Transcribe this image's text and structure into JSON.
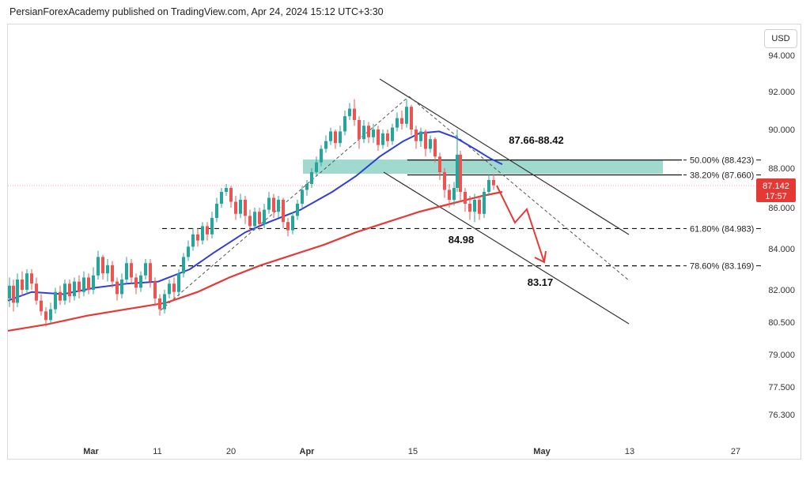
{
  "header": {
    "attribution": "PersianForexAcademy published on TradingView.com, Apr 24, 2024 15:12 UTC+3:30"
  },
  "currency_label": "USD",
  "price_marker": {
    "value": "87.142",
    "countdown": "17:57",
    "color": "#e53935"
  },
  "colors": {
    "candle_up": "#26a69a",
    "candle_down": "#ef5350",
    "ma_fast": "#2f3fd6",
    "ma_slow": "#e53935",
    "zone": "#8fd3c6",
    "projection": "#e53935"
  },
  "chart_data": {
    "type": "candlestick",
    "title": "",
    "y_ticks": [
      "94.000",
      "92.000",
      "90.000",
      "88.000",
      "86.000",
      "84.000",
      "82.000",
      "80.500",
      "79.000",
      "77.500",
      "76.300"
    ],
    "x_ticks": [
      {
        "label": "Mar",
        "bold": true
      },
      {
        "label": "11",
        "bold": false
      },
      {
        "label": "20",
        "bold": false
      },
      {
        "label": "Apr",
        "bold": true
      },
      {
        "label": "15",
        "bold": false
      },
      {
        "label": "May",
        "bold": true
      },
      {
        "label": "13",
        "bold": false
      },
      {
        "label": "27",
        "bold": false
      }
    ],
    "fib_levels": [
      {
        "label": "50.00% (88.423)",
        "value": 88.423
      },
      {
        "label": "38.20% (87.660)",
        "value": 87.66
      },
      {
        "label": "61.80% (84.983)",
        "value": 84.983
      },
      {
        "label": "78.60% (83.169)",
        "value": 83.169
      }
    ],
    "annotations": [
      {
        "text": "87.66-88.42"
      },
      {
        "text": "84.98"
      },
      {
        "text": "83.17"
      }
    ],
    "ma_fast_points": [
      [
        0,
        81.5
      ],
      [
        30,
        81.9
      ],
      [
        70,
        81.8
      ],
      [
        110,
        82.1
      ],
      [
        150,
        82.3
      ],
      [
        190,
        82.4
      ],
      [
        230,
        83.0
      ],
      [
        260,
        83.8
      ],
      [
        300,
        84.8
      ],
      [
        330,
        85.3
      ],
      [
        370,
        85.9
      ],
      [
        410,
        86.8
      ],
      [
        440,
        87.6
      ],
      [
        470,
        88.6
      ],
      [
        500,
        89.4
      ],
      [
        520,
        89.8
      ],
      [
        545,
        89.9
      ],
      [
        565,
        89.6
      ],
      [
        590,
        89.0
      ],
      [
        610,
        88.5
      ],
      [
        625,
        88.2
      ]
    ],
    "ma_slow_points": [
      [
        0,
        80.1
      ],
      [
        50,
        80.4
      ],
      [
        100,
        80.8
      ],
      [
        150,
        81.1
      ],
      [
        200,
        81.4
      ],
      [
        240,
        81.9
      ],
      [
        280,
        82.6
      ],
      [
        320,
        83.2
      ],
      [
        360,
        83.7
      ],
      [
        400,
        84.2
      ],
      [
        440,
        84.8
      ],
      [
        480,
        85.3
      ],
      [
        520,
        85.8
      ],
      [
        560,
        86.2
      ],
      [
        600,
        86.6
      ],
      [
        625,
        86.8
      ]
    ],
    "candles": [
      {
        "x": 12,
        "o": 81.6,
        "c": 82.2,
        "h": 82.6,
        "l": 81.2
      },
      {
        "x": 17,
        "o": 82.2,
        "c": 81.4,
        "h": 82.5,
        "l": 81.0
      },
      {
        "x": 22,
        "o": 81.4,
        "c": 82.5,
        "h": 82.8,
        "l": 81.2
      },
      {
        "x": 28,
        "o": 82.5,
        "c": 82.0,
        "h": 82.9,
        "l": 81.7
      },
      {
        "x": 34,
        "o": 82.0,
        "c": 82.8,
        "h": 83.0,
        "l": 81.8
      },
      {
        "x": 40,
        "o": 82.8,
        "c": 82.3,
        "h": 83.0,
        "l": 82.0
      },
      {
        "x": 46,
        "o": 82.3,
        "c": 81.5,
        "h": 82.6,
        "l": 81.3
      },
      {
        "x": 52,
        "o": 81.5,
        "c": 81.0,
        "h": 81.8,
        "l": 80.8
      },
      {
        "x": 58,
        "o": 81.0,
        "c": 80.6,
        "h": 81.2,
        "l": 80.3
      },
      {
        "x": 64,
        "o": 80.6,
        "c": 81.1,
        "h": 81.4,
        "l": 80.4
      },
      {
        "x": 70,
        "o": 81.1,
        "c": 81.9,
        "h": 82.1,
        "l": 80.9
      },
      {
        "x": 76,
        "o": 81.9,
        "c": 81.5,
        "h": 82.2,
        "l": 81.3
      },
      {
        "x": 82,
        "o": 81.5,
        "c": 82.3,
        "h": 82.5,
        "l": 81.3
      },
      {
        "x": 88,
        "o": 82.3,
        "c": 81.7,
        "h": 82.5,
        "l": 81.4
      },
      {
        "x": 94,
        "o": 81.7,
        "c": 82.4,
        "h": 82.6,
        "l": 81.5
      },
      {
        "x": 100,
        "o": 82.4,
        "c": 81.9,
        "h": 82.7,
        "l": 81.6
      },
      {
        "x": 106,
        "o": 81.9,
        "c": 82.6,
        "h": 82.9,
        "l": 81.7
      },
      {
        "x": 112,
        "o": 82.6,
        "c": 82.0,
        "h": 82.8,
        "l": 81.8
      },
      {
        "x": 118,
        "o": 82.0,
        "c": 82.7,
        "h": 83.1,
        "l": 81.8
      },
      {
        "x": 124,
        "o": 82.7,
        "c": 83.6,
        "h": 83.9,
        "l": 82.5
      },
      {
        "x": 130,
        "o": 83.6,
        "c": 82.8,
        "h": 83.7,
        "l": 82.5
      },
      {
        "x": 136,
        "o": 82.8,
        "c": 83.2,
        "h": 83.5,
        "l": 82.4
      },
      {
        "x": 142,
        "o": 83.2,
        "c": 82.4,
        "h": 83.4,
        "l": 82.1
      },
      {
        "x": 148,
        "o": 82.4,
        "c": 81.8,
        "h": 82.6,
        "l": 81.5
      },
      {
        "x": 154,
        "o": 81.8,
        "c": 82.5,
        "h": 82.8,
        "l": 81.6
      },
      {
        "x": 160,
        "o": 82.5,
        "c": 83.3,
        "h": 83.6,
        "l": 82.3
      },
      {
        "x": 166,
        "o": 83.3,
        "c": 82.6,
        "h": 83.5,
        "l": 82.3
      },
      {
        "x": 172,
        "o": 82.6,
        "c": 82.1,
        "h": 82.8,
        "l": 81.8
      },
      {
        "x": 178,
        "o": 82.1,
        "c": 82.7,
        "h": 82.9,
        "l": 81.9
      },
      {
        "x": 184,
        "o": 82.7,
        "c": 83.3,
        "h": 83.5,
        "l": 82.5
      },
      {
        "x": 190,
        "o": 83.3,
        "c": 82.4,
        "h": 83.5,
        "l": 82.1
      },
      {
        "x": 196,
        "o": 82.4,
        "c": 81.6,
        "h": 82.6,
        "l": 81.3
      },
      {
        "x": 202,
        "o": 81.6,
        "c": 81.1,
        "h": 81.8,
        "l": 80.8
      },
      {
        "x": 208,
        "o": 81.1,
        "c": 81.8,
        "h": 82.0,
        "l": 80.9
      },
      {
        "x": 214,
        "o": 81.8,
        "c": 82.3,
        "h": 82.5,
        "l": 81.6
      },
      {
        "x": 220,
        "o": 82.3,
        "c": 81.9,
        "h": 82.6,
        "l": 81.6
      },
      {
        "x": 226,
        "o": 81.9,
        "c": 82.8,
        "h": 83.0,
        "l": 81.7
      },
      {
        "x": 232,
        "o": 82.8,
        "c": 83.6,
        "h": 83.8,
        "l": 82.6
      },
      {
        "x": 238,
        "o": 83.6,
        "c": 84.1,
        "h": 84.4,
        "l": 83.4
      },
      {
        "x": 244,
        "o": 84.1,
        "c": 84.7,
        "h": 85.0,
        "l": 83.9
      },
      {
        "x": 250,
        "o": 84.7,
        "c": 84.4,
        "h": 85.0,
        "l": 84.1
      },
      {
        "x": 256,
        "o": 84.4,
        "c": 85.1,
        "h": 85.3,
        "l": 84.2
      },
      {
        "x": 262,
        "o": 85.1,
        "c": 84.7,
        "h": 85.3,
        "l": 84.4
      },
      {
        "x": 268,
        "o": 84.7,
        "c": 85.5,
        "h": 85.8,
        "l": 84.5
      },
      {
        "x": 274,
        "o": 85.5,
        "c": 86.2,
        "h": 86.5,
        "l": 85.3
      },
      {
        "x": 280,
        "o": 86.2,
        "c": 86.8,
        "h": 87.0,
        "l": 86.0
      },
      {
        "x": 286,
        "o": 86.8,
        "c": 87.0,
        "h": 87.2,
        "l": 86.6
      },
      {
        "x": 292,
        "o": 87.0,
        "c": 86.3,
        "h": 87.1,
        "l": 86.0
      },
      {
        "x": 298,
        "o": 86.3,
        "c": 85.7,
        "h": 86.6,
        "l": 85.4
      },
      {
        "x": 304,
        "o": 85.7,
        "c": 86.4,
        "h": 86.7,
        "l": 85.5
      },
      {
        "x": 310,
        "o": 86.4,
        "c": 85.6,
        "h": 86.6,
        "l": 85.2
      },
      {
        "x": 316,
        "o": 85.6,
        "c": 85.1,
        "h": 85.9,
        "l": 84.8
      },
      {
        "x": 322,
        "o": 85.1,
        "c": 85.8,
        "h": 86.0,
        "l": 84.9
      },
      {
        "x": 328,
        "o": 85.8,
        "c": 85.2,
        "h": 86.0,
        "l": 84.9
      },
      {
        "x": 334,
        "o": 85.2,
        "c": 85.9,
        "h": 86.2,
        "l": 85.0
      },
      {
        "x": 340,
        "o": 85.9,
        "c": 86.5,
        "h": 86.8,
        "l": 85.7
      },
      {
        "x": 346,
        "o": 86.5,
        "c": 85.8,
        "h": 86.7,
        "l": 85.5
      },
      {
        "x": 352,
        "o": 85.8,
        "c": 86.4,
        "h": 86.6,
        "l": 85.5
      },
      {
        "x": 358,
        "o": 86.4,
        "c": 85.3,
        "h": 86.5,
        "l": 85.0
      },
      {
        "x": 364,
        "o": 85.3,
        "c": 84.9,
        "h": 85.5,
        "l": 84.6
      },
      {
        "x": 370,
        "o": 84.9,
        "c": 85.6,
        "h": 85.8,
        "l": 84.7
      },
      {
        "x": 376,
        "o": 85.6,
        "c": 86.2,
        "h": 86.4,
        "l": 85.4
      },
      {
        "x": 382,
        "o": 86.2,
        "c": 86.9,
        "h": 87.1,
        "l": 86.0
      },
      {
        "x": 388,
        "o": 86.9,
        "c": 87.2,
        "h": 87.4,
        "l": 86.6
      },
      {
        "x": 394,
        "o": 87.2,
        "c": 87.8,
        "h": 88.0,
        "l": 87.0
      },
      {
        "x": 400,
        "o": 87.8,
        "c": 88.3,
        "h": 88.6,
        "l": 87.6
      },
      {
        "x": 406,
        "o": 88.3,
        "c": 89.0,
        "h": 89.2,
        "l": 88.1
      },
      {
        "x": 412,
        "o": 89.0,
        "c": 89.4,
        "h": 89.7,
        "l": 88.8
      },
      {
        "x": 418,
        "o": 89.4,
        "c": 89.9,
        "h": 90.1,
        "l": 89.2
      },
      {
        "x": 424,
        "o": 89.9,
        "c": 89.3,
        "h": 90.0,
        "l": 89.0
      },
      {
        "x": 430,
        "o": 89.3,
        "c": 89.9,
        "h": 90.2,
        "l": 89.1
      },
      {
        "x": 436,
        "o": 89.9,
        "c": 90.7,
        "h": 91.0,
        "l": 89.7
      },
      {
        "x": 442,
        "o": 90.7,
        "c": 91.1,
        "h": 91.4,
        "l": 90.5
      },
      {
        "x": 448,
        "o": 91.1,
        "c": 90.5,
        "h": 91.6,
        "l": 90.2
      },
      {
        "x": 454,
        "o": 90.5,
        "c": 89.5,
        "h": 90.7,
        "l": 89.0
      },
      {
        "x": 460,
        "o": 89.5,
        "c": 90.2,
        "h": 90.5,
        "l": 89.3
      },
      {
        "x": 466,
        "o": 90.2,
        "c": 89.6,
        "h": 90.4,
        "l": 89.3
      },
      {
        "x": 472,
        "o": 89.6,
        "c": 90.0,
        "h": 90.3,
        "l": 89.3
      },
      {
        "x": 478,
        "o": 90.0,
        "c": 89.2,
        "h": 90.2,
        "l": 88.9
      },
      {
        "x": 484,
        "o": 89.2,
        "c": 89.8,
        "h": 90.0,
        "l": 89.0
      },
      {
        "x": 490,
        "o": 89.8,
        "c": 89.4,
        "h": 90.0,
        "l": 89.1
      },
      {
        "x": 496,
        "o": 89.4,
        "c": 90.1,
        "h": 90.3,
        "l": 89.2
      },
      {
        "x": 502,
        "o": 90.1,
        "c": 90.6,
        "h": 90.9,
        "l": 89.9
      },
      {
        "x": 508,
        "o": 90.6,
        "c": 90.3,
        "h": 91.0,
        "l": 90.0
      },
      {
        "x": 514,
        "o": 90.3,
        "c": 91.2,
        "h": 91.6,
        "l": 90.1
      },
      {
        "x": 520,
        "o": 91.2,
        "c": 90.0,
        "h": 91.3,
        "l": 89.7
      },
      {
        "x": 526,
        "o": 90.0,
        "c": 89.4,
        "h": 90.2,
        "l": 89.0
      },
      {
        "x": 532,
        "o": 89.4,
        "c": 89.9,
        "h": 90.1,
        "l": 89.1
      },
      {
        "x": 538,
        "o": 89.9,
        "c": 89.0,
        "h": 90.0,
        "l": 88.6
      },
      {
        "x": 544,
        "o": 89.0,
        "c": 89.5,
        "h": 89.7,
        "l": 88.8
      },
      {
        "x": 550,
        "o": 89.5,
        "c": 88.6,
        "h": 89.6,
        "l": 88.3
      },
      {
        "x": 556,
        "o": 88.6,
        "c": 87.8,
        "h": 88.8,
        "l": 87.4
      },
      {
        "x": 562,
        "o": 87.8,
        "c": 86.9,
        "h": 88.0,
        "l": 86.5
      },
      {
        "x": 568,
        "o": 86.9,
        "c": 86.4,
        "h": 87.2,
        "l": 86.0
      },
      {
        "x": 574,
        "o": 86.4,
        "c": 87.0,
        "h": 87.3,
        "l": 86.1
      },
      {
        "x": 578,
        "o": 87.0,
        "c": 88.7,
        "h": 90.0,
        "l": 86.8
      },
      {
        "x": 582,
        "o": 88.7,
        "c": 86.8,
        "h": 88.9,
        "l": 86.3
      },
      {
        "x": 588,
        "o": 86.8,
        "c": 86.2,
        "h": 87.0,
        "l": 85.8
      },
      {
        "x": 594,
        "o": 86.2,
        "c": 85.8,
        "h": 86.6,
        "l": 85.4
      },
      {
        "x": 600,
        "o": 85.8,
        "c": 86.4,
        "h": 86.7,
        "l": 85.3
      },
      {
        "x": 606,
        "o": 86.4,
        "c": 85.7,
        "h": 86.6,
        "l": 85.4
      },
      {
        "x": 612,
        "o": 85.7,
        "c": 86.8,
        "h": 87.0,
        "l": 85.5
      },
      {
        "x": 618,
        "o": 86.8,
        "c": 87.4,
        "h": 87.7,
        "l": 86.6
      },
      {
        "x": 624,
        "o": 87.4,
        "c": 87.14,
        "h": 87.7,
        "l": 86.9
      }
    ]
  }
}
